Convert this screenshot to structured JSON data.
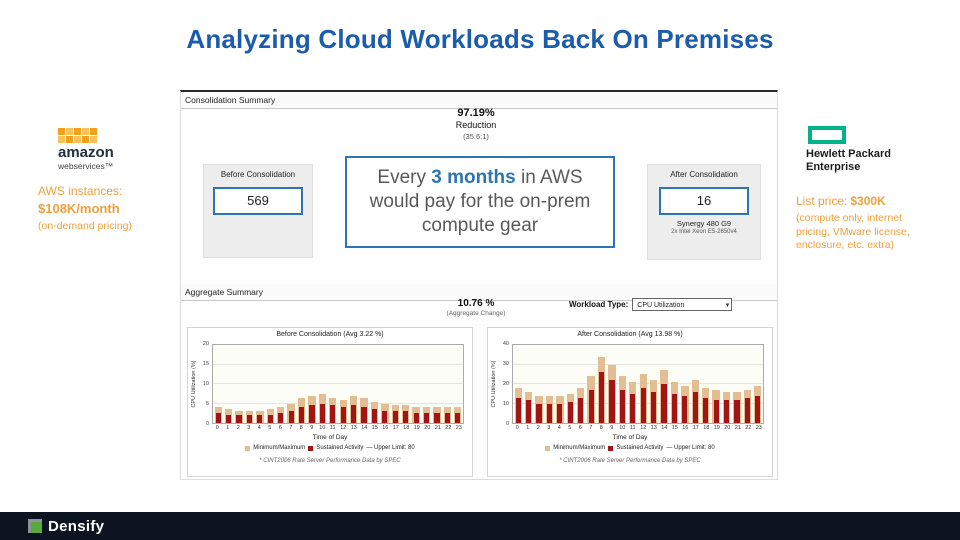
{
  "slide": {
    "title": "Analyzing Cloud Workloads Back On Premises"
  },
  "aws": {
    "logo_line1": "amazon",
    "logo_line2": "webservices™",
    "caption_line1": "AWS instances:",
    "caption_line2": "$108K/month",
    "caption_line3": "(on-demand pricing)"
  },
  "hpe": {
    "logo_line1": "Hewlett Packard",
    "logo_line2": "Enterprise",
    "price_label": "List price:",
    "price_value": "$300K",
    "note": "(compute only, internet pricing, VMware license, enclosure, etc. extra)"
  },
  "callout": {
    "part1": "Every ",
    "part2": "3 months",
    "part3": " in AWS would pay for the on-prem compute gear"
  },
  "tool": {
    "section1_header": "Consolidation Summary",
    "reduction_value": "97.19%",
    "reduction_label": "Reduction",
    "reduction_ratio": "(35.6:1)",
    "before_label": "Before Consolidation",
    "before_value": "569",
    "after_label": "After Consolidation",
    "after_value": "16",
    "after_model": "Synergy 480 G9",
    "after_cpu": "2x Intel Xeon E5-2650v4",
    "section2_header": "Aggregate Summary",
    "aggregate_value": "10.76 %",
    "aggregate_label": "(Aggregate Change)",
    "workload_type_label": "Workload Type:",
    "workload_type_value": "CPU Utilization"
  },
  "footer": {
    "brand": "Densify"
  },
  "chart_data": [
    {
      "type": "bar",
      "title": "Before Consolidation (Avg 3.22 %)",
      "xlabel": "Time of Day",
      "ylabel": "CPU Utilization (%)",
      "x": [
        0,
        1,
        2,
        3,
        4,
        5,
        6,
        7,
        8,
        9,
        10,
        11,
        12,
        13,
        14,
        15,
        16,
        17,
        18,
        19,
        20,
        21,
        22,
        23
      ],
      "ylim": [
        0,
        20
      ],
      "yticks": [
        0,
        5,
        10,
        15,
        20
      ],
      "series": [
        {
          "name": "Minimum/Maximum",
          "color": "#E2BE92",
          "values": [
            4,
            3.5,
            3,
            3,
            3,
            3.5,
            4,
            5,
            6.5,
            7,
            7.5,
            6.5,
            6,
            7,
            6.5,
            5.5,
            5,
            4.5,
            4.5,
            4,
            4,
            4,
            4,
            4
          ]
        },
        {
          "name": "Sustained Activity",
          "color": "#A31515",
          "values": [
            2.5,
            2,
            2,
            2,
            2,
            2,
            2.5,
            3,
            4,
            4.5,
            5,
            4.5,
            4,
            4.5,
            4,
            3.5,
            3,
            3,
            3,
            2.5,
            2.5,
            2.5,
            2.5,
            2.5
          ]
        }
      ],
      "legend_extra": "— Upper Limit: 80",
      "footnote": "* CINT2006 Rate Server Performance Data by SPEC",
      "legend_position": "bottom",
      "grid": true
    },
    {
      "type": "bar",
      "title": "After Consolidation (Avg 13.98 %)",
      "xlabel": "Time of Day",
      "ylabel": "CPU Utilization (%)",
      "x": [
        0,
        1,
        2,
        3,
        4,
        5,
        6,
        7,
        8,
        9,
        10,
        11,
        12,
        13,
        14,
        15,
        16,
        17,
        18,
        19,
        20,
        21,
        22,
        23
      ],
      "ylim": [
        0,
        40
      ],
      "yticks": [
        0,
        10,
        20,
        30,
        40
      ],
      "series": [
        {
          "name": "Minimum/Maximum",
          "color": "#E2BE92",
          "values": [
            18,
            16,
            14,
            14,
            14,
            15,
            18,
            24,
            34,
            30,
            24,
            21,
            25,
            22,
            27,
            21,
            19,
            22,
            18,
            17,
            16,
            16,
            17,
            19
          ]
        },
        {
          "name": "Sustained Activity",
          "color": "#A31515",
          "values": [
            13,
            12,
            10,
            10,
            10,
            11,
            13,
            17,
            26,
            22,
            17,
            15,
            18,
            16,
            20,
            15,
            14,
            16,
            13,
            12,
            12,
            12,
            13,
            14
          ]
        }
      ],
      "legend_extra": "— Upper Limit: 80",
      "footnote": "* CINT2006 Rate Server Performance Data by SPEC",
      "legend_position": "bottom",
      "grid": true
    }
  ]
}
